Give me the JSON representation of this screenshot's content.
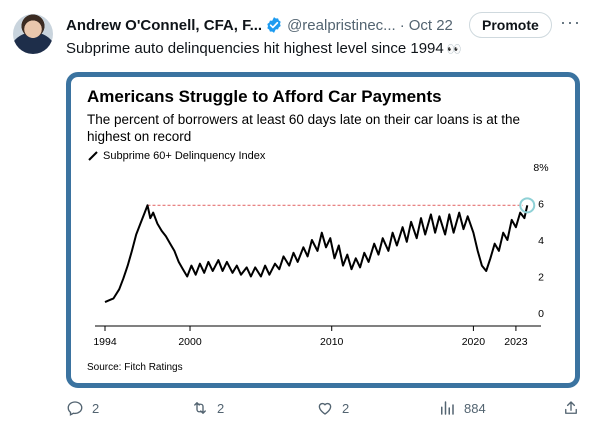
{
  "tweet": {
    "author": "Andrew O'Connell, CFA, F...",
    "handle": "@realpristinec...",
    "separator": "·",
    "date": "Oct 22",
    "promote_label": "Promote",
    "more_label": "···",
    "text": "Subprime auto delinquencies hit highest level since 1994",
    "emoji": "👀"
  },
  "actions": {
    "replies": "2",
    "reposts": "2",
    "likes": "2",
    "views": "884"
  },
  "colors": {
    "card_border": "#3b73a0",
    "series_line": "#000000",
    "reference_line": "#e57373",
    "highlight_circle": "#8fd1d6"
  },
  "icons": [
    "verified-badge-icon",
    "reply-icon",
    "repost-icon",
    "like-icon",
    "views-icon",
    "share-icon"
  ],
  "chart_data": {
    "type": "line",
    "title": "Americans Struggle to Afford Car Payments",
    "subtitle": "The percent of borrowers at least 60 days late on their car loans is at the highest on record",
    "legend": [
      "Subprime 60+ Delinquency Index"
    ],
    "source": "Source: Fitch Ratings",
    "x_ticks": [
      "1994",
      "2000",
      "2010",
      "2020",
      "2023"
    ],
    "y_ticks": [
      "0",
      "2",
      "4",
      "6",
      "8%"
    ],
    "xlim": [
      1994,
      2023.5
    ],
    "ylim": [
      0,
      8
    ],
    "y_axis_side": "right",
    "grid": false,
    "reference_line": 5.9,
    "highlight_point": {
      "x": 2023.8,
      "y": 5.9
    },
    "series": [
      {
        "values": [
          [
            1994.0,
            0.6
          ],
          [
            1994.3,
            0.7
          ],
          [
            1994.6,
            0.8
          ],
          [
            1995.0,
            1.3
          ],
          [
            1995.3,
            1.9
          ],
          [
            1995.6,
            2.6
          ],
          [
            1995.9,
            3.4
          ],
          [
            1996.2,
            4.3
          ],
          [
            1996.5,
            4.9
          ],
          [
            1996.8,
            5.5
          ],
          [
            1997.0,
            5.9
          ],
          [
            1997.2,
            5.2
          ],
          [
            1997.4,
            5.5
          ],
          [
            1997.7,
            4.9
          ],
          [
            1998.0,
            4.5
          ],
          [
            1998.3,
            4.2
          ],
          [
            1998.6,
            3.8
          ],
          [
            1998.9,
            3.4
          ],
          [
            1999.2,
            2.8
          ],
          [
            1999.5,
            2.4
          ],
          [
            1999.8,
            2.0
          ],
          [
            2000.1,
            2.6
          ],
          [
            2000.4,
            2.1
          ],
          [
            2000.7,
            2.7
          ],
          [
            2001.0,
            2.2
          ],
          [
            2001.3,
            2.8
          ],
          [
            2001.6,
            2.3
          ],
          [
            2002.0,
            2.9
          ],
          [
            2002.3,
            2.3
          ],
          [
            2002.6,
            2.8
          ],
          [
            2003.0,
            2.2
          ],
          [
            2003.3,
            2.6
          ],
          [
            2003.6,
            2.1
          ],
          [
            2004.0,
            2.5
          ],
          [
            2004.3,
            2.0
          ],
          [
            2004.6,
            2.5
          ],
          [
            2005.0,
            2.0
          ],
          [
            2005.3,
            2.6
          ],
          [
            2005.6,
            2.1
          ],
          [
            2006.0,
            2.7
          ],
          [
            2006.3,
            2.4
          ],
          [
            2006.6,
            3.1
          ],
          [
            2007.0,
            2.6
          ],
          [
            2007.3,
            3.3
          ],
          [
            2007.6,
            2.8
          ],
          [
            2008.0,
            3.6
          ],
          [
            2008.3,
            3.1
          ],
          [
            2008.6,
            4.0
          ],
          [
            2009.0,
            3.4
          ],
          [
            2009.3,
            4.4
          ],
          [
            2009.6,
            3.6
          ],
          [
            2009.9,
            4.1
          ],
          [
            2010.2,
            3.0
          ],
          [
            2010.5,
            3.7
          ],
          [
            2010.8,
            2.6
          ],
          [
            2011.1,
            3.2
          ],
          [
            2011.4,
            2.4
          ],
          [
            2011.7,
            3.0
          ],
          [
            2012.0,
            2.5
          ],
          [
            2012.3,
            3.3
          ],
          [
            2012.6,
            2.8
          ],
          [
            2013.0,
            3.8
          ],
          [
            2013.3,
            3.2
          ],
          [
            2013.6,
            4.1
          ],
          [
            2014.0,
            3.4
          ],
          [
            2014.3,
            4.4
          ],
          [
            2014.6,
            3.7
          ],
          [
            2015.0,
            4.7
          ],
          [
            2015.3,
            3.9
          ],
          [
            2015.6,
            5.0
          ],
          [
            2016.0,
            4.1
          ],
          [
            2016.3,
            5.2
          ],
          [
            2016.6,
            4.3
          ],
          [
            2017.0,
            5.4
          ],
          [
            2017.3,
            4.4
          ],
          [
            2017.6,
            5.3
          ],
          [
            2018.0,
            4.3
          ],
          [
            2018.3,
            5.4
          ],
          [
            2018.6,
            4.4
          ],
          [
            2019.0,
            5.5
          ],
          [
            2019.3,
            4.6
          ],
          [
            2019.6,
            5.3
          ],
          [
            2020.0,
            4.4
          ],
          [
            2020.3,
            3.4
          ],
          [
            2020.6,
            2.6
          ],
          [
            2020.9,
            2.3
          ],
          [
            2021.2,
            3.0
          ],
          [
            2021.5,
            3.8
          ],
          [
            2021.8,
            3.4
          ],
          [
            2022.1,
            4.4
          ],
          [
            2022.4,
            4.0
          ],
          [
            2022.7,
            5.1
          ],
          [
            2023.0,
            4.7
          ],
          [
            2023.3,
            5.5
          ],
          [
            2023.6,
            5.2
          ],
          [
            2023.8,
            5.9
          ]
        ]
      }
    ]
  }
}
